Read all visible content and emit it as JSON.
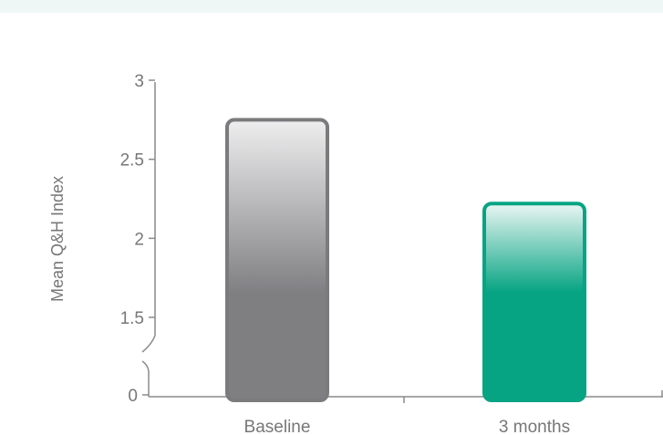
{
  "chart_data": {
    "type": "bar",
    "title": "",
    "xlabel": "",
    "ylabel": "Mean Q&H Index",
    "categories": [
      "Baseline",
      "3 months"
    ],
    "values": [
      2.75,
      2.22
    ],
    "ylim": [
      0,
      3
    ],
    "axis_break": {
      "between": [
        0,
        1.5
      ]
    },
    "yticks": [
      {
        "value": 0,
        "label": "0"
      },
      {
        "value": 1.5,
        "label": "1.5"
      },
      {
        "value": 2,
        "label": "2"
      },
      {
        "value": 2.5,
        "label": "2.5"
      },
      {
        "value": 3,
        "label": "3"
      }
    ],
    "grid": false,
    "legend": "none",
    "colors": {
      "Baseline": {
        "stroke": "#7b7b7e",
        "top": "#eeeeef",
        "bottom": "#7f7f82"
      },
      "3 months": {
        "stroke": "#06a483",
        "top": "#eaf6f3",
        "bottom": "#06a483"
      },
      "axis": "#8a8a8a",
      "text": "#777777"
    }
  }
}
